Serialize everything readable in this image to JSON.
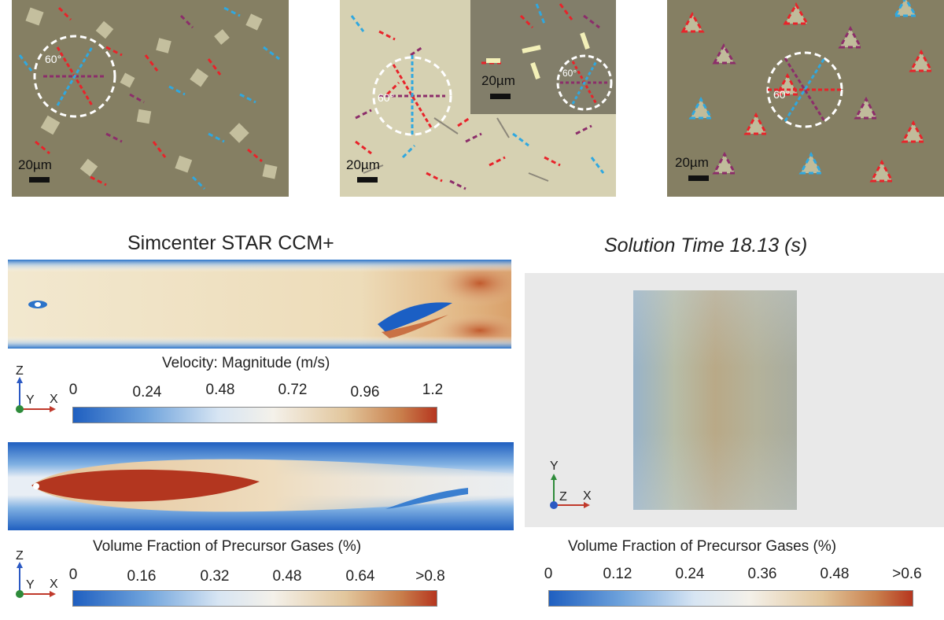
{
  "micrographs": [
    {
      "scale_label": "20µm",
      "angle_label": "60°"
    },
    {
      "scale_label": "20µm",
      "angle_label": "60°",
      "inset_scale_label": "20µm",
      "inset_angle_label": "60°"
    },
    {
      "scale_label": "20µm",
      "angle_label": "60°"
    }
  ],
  "left_panel": {
    "title": "Simcenter STAR CCM+",
    "velocity_colorbar": {
      "label": "Velocity: Magnitude  (m/s)",
      "ticks": [
        "0",
        "0.24",
        "0.48",
        "0.72",
        "0.96",
        "1.2"
      ]
    },
    "fraction_colorbar": {
      "label": "Volume Fraction of Precursor Gases (%)",
      "ticks": [
        "0",
        "0.16",
        "0.32",
        "0.48",
        "0.64",
        ">0.8"
      ]
    },
    "axes_top": {
      "vertical": "Z",
      "depth": "Y",
      "horizontal": "X"
    },
    "axes_bottom": {
      "vertical": "Z",
      "depth": "Y",
      "horizontal": "X"
    }
  },
  "right_panel": {
    "title": "Solution Time 18.13 (s)",
    "fraction_colorbar": {
      "label": "Volume Fraction of Precursor Gases (%)",
      "ticks": [
        "0",
        "0.12",
        "0.24",
        "0.36",
        "0.48",
        ">0.6"
      ]
    },
    "axes": {
      "vertical": "Y",
      "depth": "Z",
      "horizontal": "X"
    }
  },
  "colors": {
    "substrate": "#857f63",
    "flake": "#cbc7a5",
    "red_dash": "#e8232a",
    "blue_dash": "#2fa8e0",
    "purple_dash": "#8c2d6a",
    "cb_low": "#1f5fc0",
    "cb_mid": "#f4f1ea",
    "cb_high": "#b6361f"
  }
}
